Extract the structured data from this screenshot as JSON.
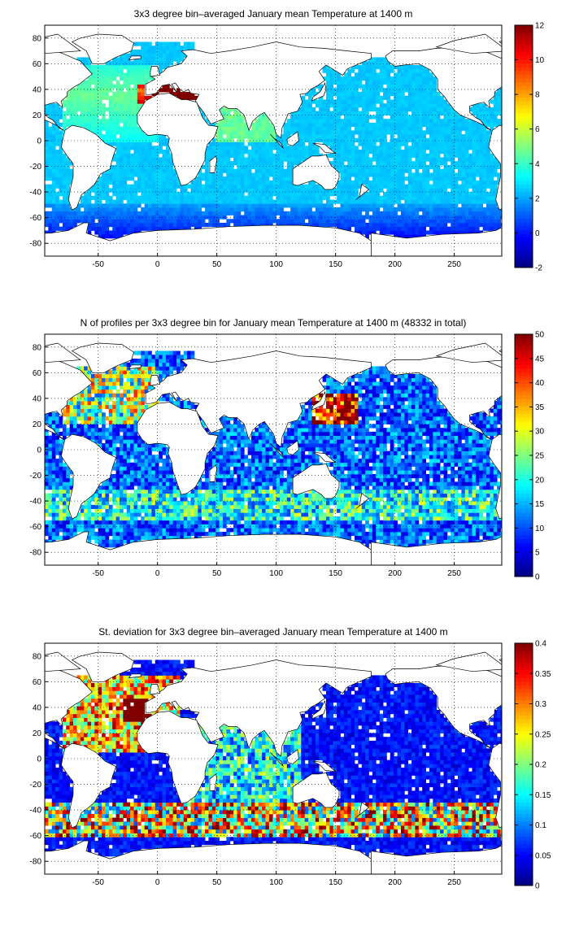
{
  "colormap": "jet",
  "chart_data": [
    {
      "type": "heatmap",
      "title": "3x3 degree bin–averaged January mean Temperature at 1400 m",
      "x_ticks": [
        -50,
        0,
        50,
        100,
        150,
        200,
        250
      ],
      "y_ticks": [
        80,
        60,
        40,
        20,
        0,
        -20,
        -40,
        -60,
        -80
      ],
      "xlim": [
        -95,
        290
      ],
      "ylim": [
        -90,
        90
      ],
      "grid": true,
      "colorbar": {
        "min": -2,
        "max": 12,
        "ticks": [
          -2,
          0,
          2,
          4,
          6,
          8,
          10,
          12
        ]
      },
      "field_description_value_range": [
        -2,
        12
      ],
      "typical_values": {
        "open_ocean": 2.5,
        "north_atlantic": 4.5,
        "mediterranean_outflow": 12,
        "arabian_sea": 5,
        "southern_ocean": 0
      }
    },
    {
      "type": "heatmap",
      "title": "N of profiles per 3x3 degree bin for January mean Temperature at 1400 m (48332 in total)",
      "x_ticks": [
        -50,
        0,
        50,
        100,
        150,
        200,
        250
      ],
      "y_ticks": [
        80,
        60,
        40,
        20,
        0,
        -20,
        -40,
        -60,
        -80
      ],
      "xlim": [
        -95,
        290
      ],
      "ylim": [
        -90,
        90
      ],
      "grid": true,
      "colorbar": {
        "min": 0,
        "max": 50,
        "ticks": [
          0,
          5,
          10,
          15,
          20,
          25,
          30,
          35,
          40,
          45,
          50
        ]
      },
      "typical_values": {
        "open_ocean": 10,
        "kuroshio_region": 50,
        "north_atlantic": 25,
        "southern_ocean_band": 18
      }
    },
    {
      "type": "heatmap",
      "title": "St. deviation for 3x3 degree bin–averaged January mean Temperature at 1400 m",
      "x_ticks": [
        -50,
        0,
        50,
        100,
        150,
        200,
        250
      ],
      "y_ticks": [
        80,
        60,
        40,
        20,
        0,
        -20,
        -40,
        -60,
        -80
      ],
      "xlim": [
        -95,
        290
      ],
      "ylim": [
        -90,
        90
      ],
      "grid": true,
      "colorbar": {
        "min": 0,
        "max": 0.4,
        "ticks": [
          0,
          0.05,
          0.1,
          0.15,
          0.2,
          0.25,
          0.3,
          0.35,
          0.4
        ]
      },
      "typical_values": {
        "pacific": 0.03,
        "north_atlantic": 0.3,
        "mediterranean_outflow": 0.4,
        "southern_ocean_band": 0.25,
        "indian_ocean": 0.15
      }
    }
  ]
}
